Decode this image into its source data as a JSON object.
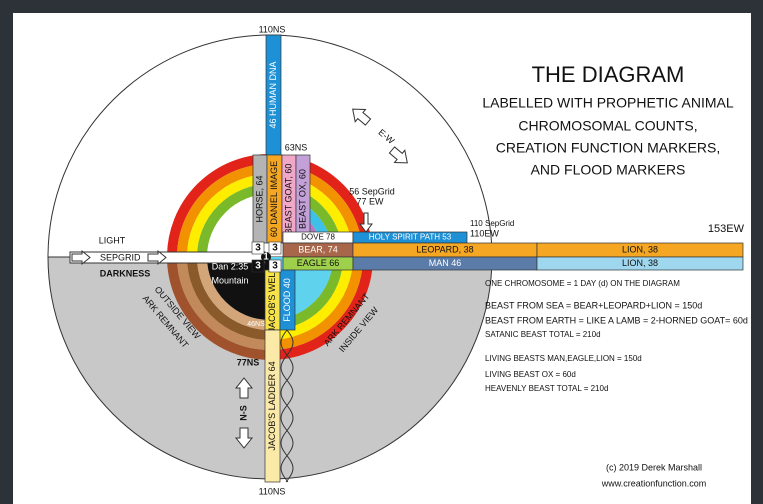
{
  "title": "THE DIAGRAM",
  "subtitle": [
    "LABELLED WITH PROPHETIC ANIMAL",
    "CHROMOSOMAL COUNTS,",
    "CREATION FUNCTION MARKERS,",
    "AND FLOOD MARKERS"
  ],
  "axis_labels": {
    "top": "110NS",
    "bottom": "110NS",
    "ns63": "63NS",
    "sepgrid56": "56 SepGrid",
    "ew77": "77 EW",
    "sepgrid110": "110 SepGrid",
    "ew110": "110EW",
    "ew153": "153EW",
    "light": "LIGHT",
    "sepgrid": "SEPGRID",
    "darkness": "DARKNESS",
    "ns46": "46NS",
    "ns77": "77NS",
    "ns": "N-S",
    "ew": "E-W"
  },
  "mountain": [
    "Dan 2:35",
    "Mountain"
  ],
  "bars": {
    "human_dna": "46 HUMAN DNA",
    "daniel_image": "60 DANIEL IMAGE",
    "horse": "HORSE, 64",
    "beast_goat": "BEAST GOAT, 60",
    "beast_ox": "BEAST OX, 60",
    "dove": "DOVE 78",
    "holy_spirit": "HOLY SPIRIT PATH 53",
    "bear": "BEAR, 74",
    "leopard": "LEOPARD, 38",
    "lion_top": "LION, 38",
    "eagle": "EAGLE 66",
    "man": "MAN 46",
    "lion_bottom": "LION, 38",
    "jacobs_well": "JACOB'S WELL",
    "flood": "FLOOD 40",
    "jacobs_ladder": "JACOB'S LADDER 64"
  },
  "markers": [
    "1",
    "3",
    "3",
    "3",
    "3"
  ],
  "ark": {
    "outside": [
      "ARK REMNANT",
      "OUTSIDE VIEW"
    ],
    "inside": [
      "ARK REMNANT",
      "INSIDE VIEW"
    ]
  },
  "notes": [
    "ONE CHROMOSOME = 1 DAY  (d) ON THE DIAGRAM",
    "BEAST FROM SEA = BEAR+LEOPARD+LION = 150d",
    "BEAST FROM EARTH = LIKE A LAMB = 2-HORNED GOAT= 60d",
    "SATANIC BEAST TOTAL = 210d",
    "LIVING BEASTS MAN,EAGLE,LION = 150d",
    "LIVING BEAST OX = 60d",
    "HEAVENLY BEAST TOTAL = 210d"
  ],
  "credits": [
    "(c) 2019 Derek Marshall",
    "www.creationfunction.com"
  ]
}
